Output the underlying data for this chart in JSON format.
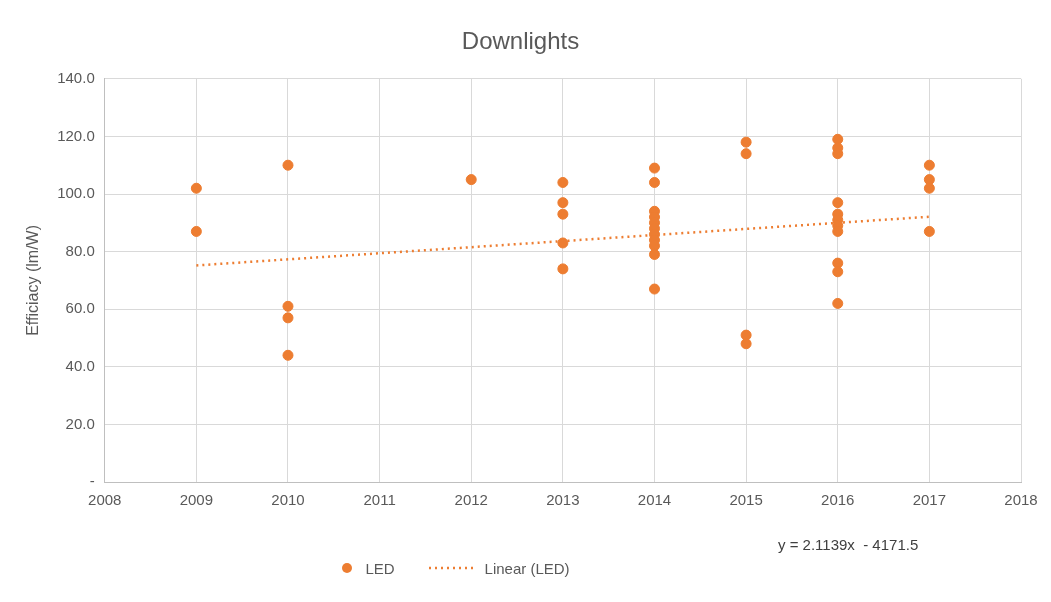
{
  "chart_data": {
    "type": "scatter",
    "title": "Downlights",
    "ylabel": "Efficiacy (lm/W)",
    "xlim": [
      2008,
      2018
    ],
    "xticks": [
      2008,
      2009,
      2010,
      2011,
      2012,
      2013,
      2014,
      2015,
      2016,
      2017,
      2018
    ],
    "ylim": [
      0,
      140
    ],
    "yticks": [
      {
        "value": 0,
        "label": "-"
      },
      {
        "value": 20,
        "label": "20.0"
      },
      {
        "value": 40,
        "label": "40.0"
      },
      {
        "value": 60,
        "label": "60.0"
      },
      {
        "value": 80,
        "label": "80.0"
      },
      {
        "value": 100,
        "label": "100.0"
      },
      {
        "value": 120,
        "label": "120.0"
      },
      {
        "value": 140,
        "label": "140.0"
      }
    ],
    "grid": true,
    "legend": "bottom",
    "marker": "circle",
    "series": [
      {
        "name": "LED",
        "color": "#ed7d31",
        "x": [
          2009,
          2009,
          2010,
          2010,
          2010,
          2010,
          2012,
          2013,
          2013,
          2013,
          2013,
          2013,
          2014,
          2014,
          2014,
          2014,
          2014,
          2014,
          2014,
          2014,
          2014,
          2014,
          2014,
          2015,
          2015,
          2015,
          2015,
          2016,
          2016,
          2016,
          2016,
          2016,
          2016,
          2016,
          2016,
          2016,
          2016,
          2016,
          2017,
          2017,
          2017,
          2017
        ],
        "values": [
          102,
          87,
          110,
          61,
          57,
          44,
          105,
          104,
          97,
          93,
          83,
          74,
          109,
          104,
          94,
          92,
          90,
          88,
          86,
          84,
          82,
          79,
          67,
          118,
          114,
          51,
          48,
          119,
          116,
          114,
          97,
          93,
          91,
          89,
          87,
          76,
          73,
          62,
          110,
          105,
          102,
          87
        ]
      },
      {
        "name": "Linear (LED)",
        "type": "line",
        "color": "#ed7d31",
        "line_style": "dotted",
        "marker": "none",
        "x": [
          2009,
          2017
        ],
        "values": [
          75.2,
          92.1
        ]
      }
    ],
    "annotations": [
      "y = 2.1139x  - 4171.5"
    ]
  }
}
